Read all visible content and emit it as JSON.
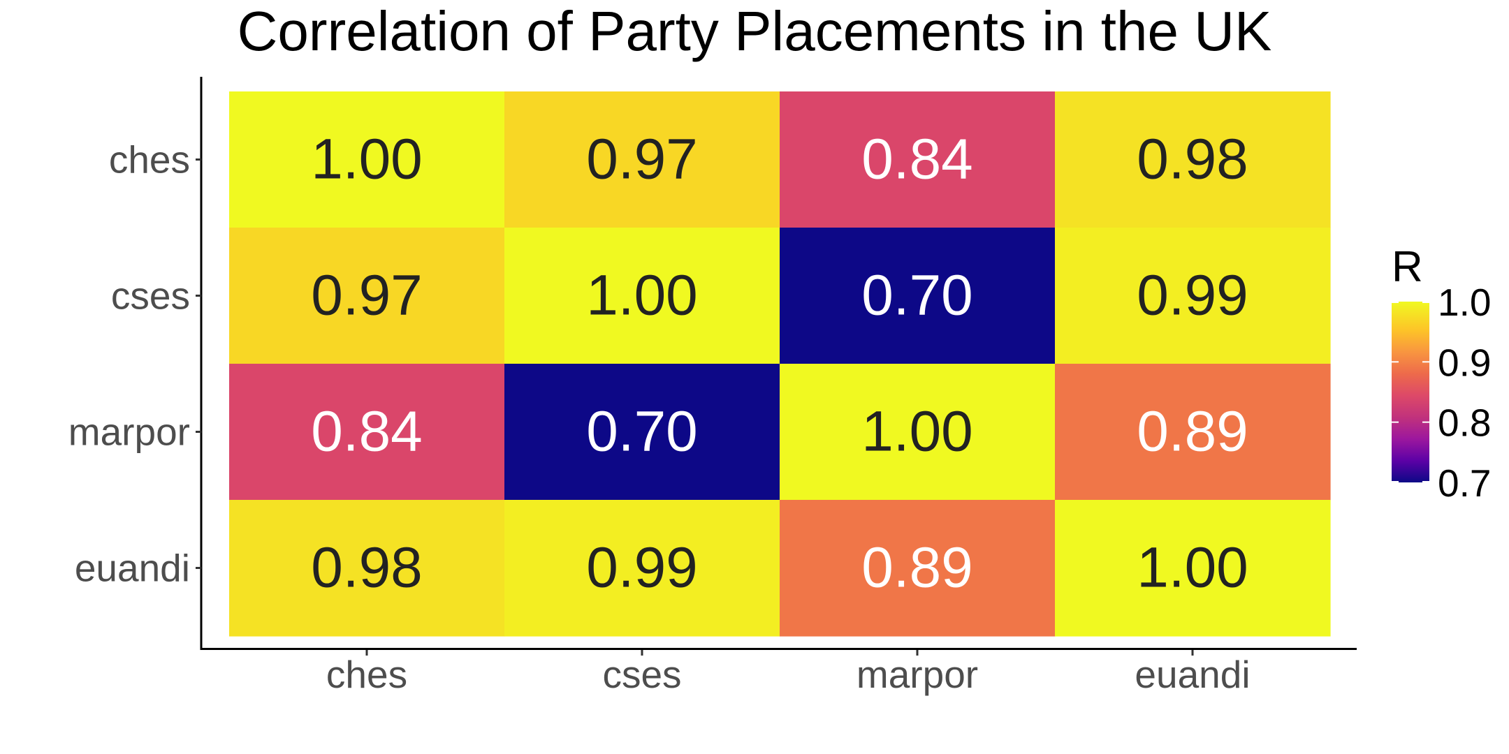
{
  "chart_data": {
    "type": "heatmap",
    "title": "Correlation of Party Placements in the UK",
    "x_categories": [
      "ches",
      "cses",
      "marpor",
      "euandi"
    ],
    "y_categories": [
      "ches",
      "cses",
      "marpor",
      "euandi"
    ],
    "values": [
      [
        1.0,
        0.97,
        0.84,
        0.98
      ],
      [
        0.97,
        1.0,
        0.7,
        0.99
      ],
      [
        0.84,
        0.7,
        1.0,
        0.89
      ],
      [
        0.98,
        0.99,
        0.89,
        1.0
      ]
    ],
    "value_format": "2 decimals",
    "legend": {
      "title": "R",
      "ticks": [
        "1.0",
        "0.9",
        "0.8",
        "0.7"
      ],
      "range": [
        0.7,
        1.0
      ],
      "position": "right",
      "colormap": "plasma"
    },
    "colors": {
      "low": "#0d0887",
      "high": "#f0f921",
      "label_dark": "#222222",
      "label_light": "#ffffff"
    },
    "grid": false
  }
}
